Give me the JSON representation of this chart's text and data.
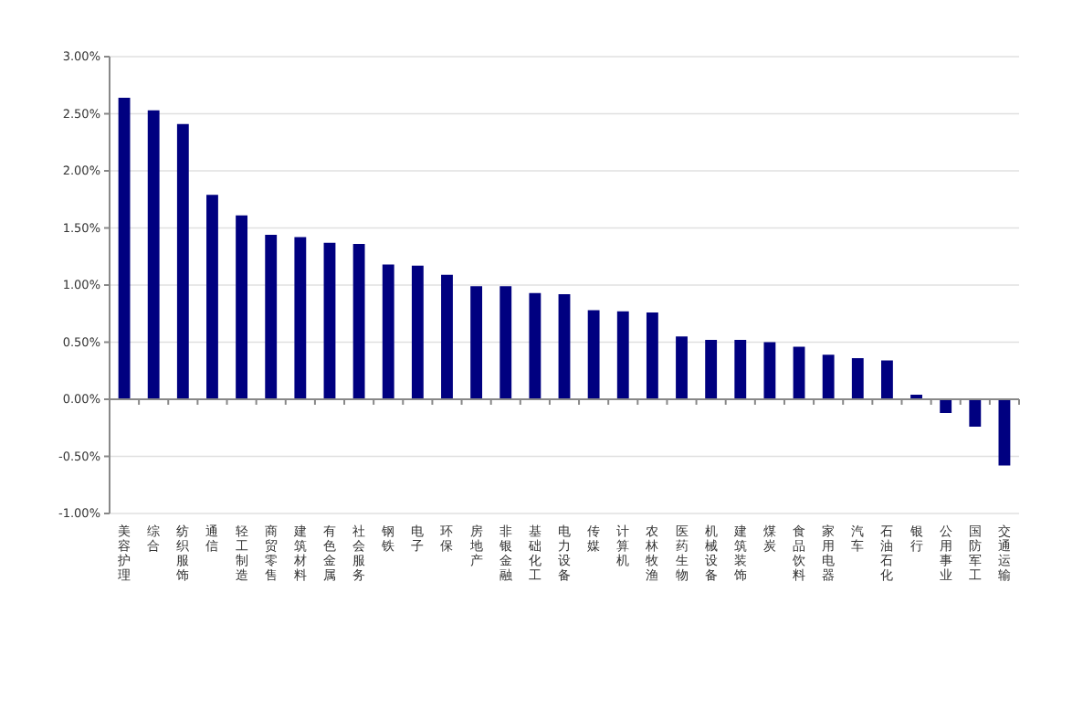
{
  "chart_data": {
    "type": "bar",
    "categories": [
      "美容护理",
      "综合",
      "纺织服饰",
      "通信",
      "轻工制造",
      "商贸零售",
      "建筑材料",
      "有色金属",
      "社会服务",
      "钢铁",
      "电子",
      "环保",
      "房地产",
      "非银金融",
      "基础化工",
      "电力设备",
      "传媒",
      "计算机",
      "农林牧渔",
      "医药生物",
      "机械设备",
      "建筑装饰",
      "煤炭",
      "食品饮料",
      "家用电器",
      "汽车",
      "石油石化",
      "银行",
      "公用事业",
      "国防军工",
      "交通运输"
    ],
    "values": [
      2.64,
      2.53,
      2.41,
      1.79,
      1.61,
      1.44,
      1.42,
      1.37,
      1.36,
      1.18,
      1.17,
      1.09,
      0.99,
      0.99,
      0.93,
      0.92,
      0.78,
      0.77,
      0.76,
      0.55,
      0.52,
      0.52,
      0.5,
      0.46,
      0.39,
      0.36,
      0.34,
      0.04,
      -0.12,
      -0.24,
      -0.58
    ],
    "color": "#000080",
    "ylim": [
      -1,
      3
    ],
    "yticks": [
      {
        "value": -1,
        "label": "-1.00%"
      },
      {
        "value": -0.5,
        "label": "-0.50%"
      },
      {
        "value": 0,
        "label": "0.00%"
      },
      {
        "value": 0.5,
        "label": "0.50%"
      },
      {
        "value": 1,
        "label": "1.00%"
      },
      {
        "value": 1.5,
        "label": "1.50%"
      },
      {
        "value": 2,
        "label": "2.00%"
      },
      {
        "value": 2.5,
        "label": "2.50%"
      },
      {
        "value": 3,
        "label": "3.00%"
      }
    ],
    "grid": "y"
  }
}
